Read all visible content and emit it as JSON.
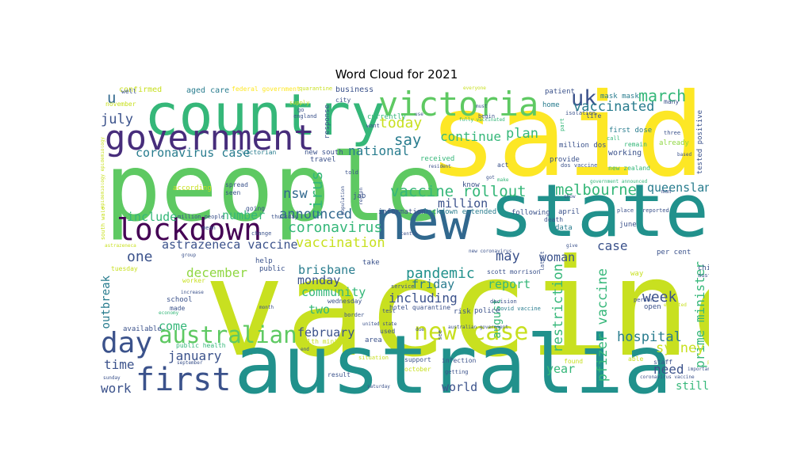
{
  "figure": {
    "title": "Word Cloud for 2021"
  },
  "palette": {
    "purple": "#472d7b",
    "deep_purple": "#440154",
    "indigo": "#3b528b",
    "blue": "#31688e",
    "teal_blue": "#287c8e",
    "teal": "#21918c",
    "sea": "#1f9e89",
    "green": "#35b779",
    "mint": "#5ec962",
    "lime": "#90d743",
    "yellow_green": "#c8e020",
    "yellow": "#fde725"
  },
  "words": [
    {
      "text": "vaccine",
      "color": "#c8e020"
    },
    {
      "text": "said",
      "color": "#fde725"
    },
    {
      "text": "people",
      "color": "#5ec962"
    },
    {
      "text": "australia",
      "color": "#21918c"
    },
    {
      "text": "state",
      "color": "#21918c"
    },
    {
      "text": "new",
      "color": "#31688e"
    },
    {
      "text": "country",
      "color": "#35b779"
    },
    {
      "text": "victoria",
      "color": "#5ec962"
    },
    {
      "text": "government",
      "color": "#472d7b"
    },
    {
      "text": "lockdown",
      "color": "#440154"
    },
    {
      "text": "first",
      "color": "#3b528b"
    },
    {
      "text": "day",
      "color": "#3b528b"
    },
    {
      "text": "australian",
      "color": "#5ec962"
    },
    {
      "text": "new case",
      "color": "#c8e020"
    },
    {
      "text": "vaccine rollout",
      "color": "#35b779"
    },
    {
      "text": "melbourne",
      "color": "#35b779"
    },
    {
      "text": "uk",
      "color": "#3b528b"
    },
    {
      "text": "vaccinated",
      "color": "#287c8e"
    },
    {
      "text": "march",
      "color": "#35b779"
    },
    {
      "text": "today",
      "color": "#c8e020"
    },
    {
      "text": "say",
      "color": "#287c8e"
    },
    {
      "text": "plan",
      "color": "#35b779"
    },
    {
      "text": "continue",
      "color": "#35b779"
    },
    {
      "text": "national",
      "color": "#287c8e"
    },
    {
      "text": "july",
      "color": "#3b528b"
    },
    {
      "text": "u",
      "color": "#31688e"
    },
    {
      "text": "nsw",
      "color": "#31688e"
    },
    {
      "text": "coronavirus case",
      "color": "#287c8e"
    },
    {
      "text": "virus",
      "color": "#35b779"
    },
    {
      "text": "announced",
      "color": "#31688e"
    },
    {
      "text": "coronavirus",
      "color": "#35b779"
    },
    {
      "text": "vaccination",
      "color": "#c8e020"
    },
    {
      "text": "million",
      "color": "#3b528b"
    },
    {
      "text": "queensland",
      "color": "#287c8e"
    },
    {
      "text": "astrazeneca vaccine",
      "color": "#3b528b"
    },
    {
      "text": "include",
      "color": "#35b779"
    },
    {
      "text": "number",
      "color": "#35b779"
    },
    {
      "text": "one",
      "color": "#3b528b"
    },
    {
      "text": "may",
      "color": "#3b528b"
    },
    {
      "text": "woman",
      "color": "#3b528b"
    },
    {
      "text": "case",
      "color": "#3b528b"
    },
    {
      "text": "pandemic",
      "color": "#21918c"
    },
    {
      "text": "friday",
      "color": "#287c8e"
    },
    {
      "text": "brisbane",
      "color": "#287c8e"
    },
    {
      "text": "december",
      "color": "#90d743"
    },
    {
      "text": "monday",
      "color": "#3b528b"
    },
    {
      "text": "community",
      "color": "#35b779"
    },
    {
      "text": "including",
      "color": "#3b528b"
    },
    {
      "text": "report",
      "color": "#35b779"
    },
    {
      "text": "restriction",
      "color": "#35b779"
    },
    {
      "text": "pfizer vaccine",
      "color": "#35b779"
    },
    {
      "text": "prime minister",
      "color": "#35b779"
    },
    {
      "text": "week",
      "color": "#3b528b"
    },
    {
      "text": "hospital",
      "color": "#287c8e"
    },
    {
      "text": "sydney",
      "color": "#c8e020"
    },
    {
      "text": "two",
      "color": "#35b779"
    },
    {
      "text": "february",
      "color": "#3b528b"
    },
    {
      "text": "january",
      "color": "#3b528b"
    },
    {
      "text": "time",
      "color": "#3b528b"
    },
    {
      "text": "come",
      "color": "#35b779"
    },
    {
      "text": "work",
      "color": "#3b528b"
    },
    {
      "text": "outbreak",
      "color": "#287c8e"
    },
    {
      "text": "august",
      "color": "#35b779"
    },
    {
      "text": "year",
      "color": "#35b779"
    },
    {
      "text": "need",
      "color": "#3b528b"
    },
    {
      "text": "still",
      "color": "#35b779"
    },
    {
      "text": "world",
      "color": "#3b528b"
    },
    {
      "text": "confirmed",
      "color": "#c8e020"
    },
    {
      "text": "aged care",
      "color": "#287c8e"
    },
    {
      "text": "federal government",
      "color": "#fde725"
    },
    {
      "text": "quarantine",
      "color": "#c8e020"
    },
    {
      "text": "business",
      "color": "#3b528b"
    },
    {
      "text": "patient",
      "color": "#3b528b"
    },
    {
      "text": "home",
      "color": "#287c8e"
    },
    {
      "text": "many",
      "color": "#3b528b"
    },
    {
      "text": "mask mask",
      "color": "#287c8e"
    },
    {
      "text": "life",
      "color": "#3b528b"
    },
    {
      "text": "first dose",
      "color": "#287c8e"
    },
    {
      "text": "tested positive",
      "color": "#3b528b"
    },
    {
      "text": "already",
      "color": "#90d743"
    },
    {
      "text": "remain",
      "color": "#35b779"
    },
    {
      "text": "working",
      "color": "#3b528b"
    },
    {
      "text": "million dos",
      "color": "#3b528b"
    },
    {
      "text": "received",
      "color": "#35b779"
    },
    {
      "text": "provide",
      "color": "#3b528b"
    },
    {
      "text": "new zealand",
      "color": "#35b779"
    },
    {
      "text": "victorian",
      "color": "#287c8e"
    },
    {
      "text": "new south",
      "color": "#3b528b"
    },
    {
      "text": "travel",
      "color": "#3b528b"
    },
    {
      "text": "currently",
      "color": "#35b779"
    },
    {
      "text": "according",
      "color": "#c8e020"
    },
    {
      "text": "spread",
      "color": "#3b528b"
    },
    {
      "text": "seen",
      "color": "#3b528b"
    },
    {
      "text": "told",
      "color": "#3b528b"
    },
    {
      "text": "jab",
      "color": "#3b528b"
    },
    {
      "text": "know",
      "color": "#3b528b"
    },
    {
      "text": "going",
      "color": "#3b528b"
    },
    {
      "text": "million people",
      "color": "#3b528b"
    },
    {
      "text": "information",
      "color": "#3b528b"
    },
    {
      "text": "lockdown extended",
      "color": "#287c8e"
    },
    {
      "text": "following",
      "color": "#3b528b"
    },
    {
      "text": "april",
      "color": "#3b528b"
    },
    {
      "text": "data",
      "color": "#287c8e"
    },
    {
      "text": "death",
      "color": "#3b528b"
    },
    {
      "text": "june",
      "color": "#3b528b"
    },
    {
      "text": "per cent",
      "color": "#3b528b"
    },
    {
      "text": "thursday",
      "color": "#3b528b"
    },
    {
      "text": "help",
      "color": "#3b528b"
    },
    {
      "text": "public",
      "color": "#3b528b"
    },
    {
      "text": "take",
      "color": "#3b528b"
    },
    {
      "text": "scott morrison",
      "color": "#3b528b"
    },
    {
      "text": "tuesday",
      "color": "#c8e020"
    },
    {
      "text": "worker",
      "color": "#c8e020"
    },
    {
      "text": "school",
      "color": "#3b528b"
    },
    {
      "text": "made",
      "color": "#3b528b"
    },
    {
      "text": "economy",
      "color": "#35b779"
    },
    {
      "text": "hotel quarantine",
      "color": "#3b528b"
    },
    {
      "text": "wednesday",
      "color": "#3b528b"
    },
    {
      "text": "risk",
      "color": "#3b528b"
    },
    {
      "text": "decision",
      "color": "#3b528b"
    },
    {
      "text": "covid vaccine",
      "color": "#287c8e"
    },
    {
      "text": "police",
      "color": "#3b528b"
    },
    {
      "text": "child",
      "color": "#3b528b"
    },
    {
      "text": "way",
      "color": "#c8e020"
    },
    {
      "text": "australia vaccine",
      "color": "#3b528b"
    },
    {
      "text": "person",
      "color": "#3b528b"
    },
    {
      "text": "open",
      "color": "#3b528b"
    },
    {
      "text": "available",
      "color": "#3b528b"
    },
    {
      "text": "public health",
      "color": "#35b779"
    },
    {
      "text": "health minister",
      "color": "#c8e020"
    },
    {
      "text": "used",
      "color": "#3b528b"
    },
    {
      "text": "area",
      "color": "#3b528b"
    },
    {
      "text": "support",
      "color": "#3b528b"
    },
    {
      "text": "infection",
      "color": "#3b528b"
    },
    {
      "text": "australian government",
      "color": "#3b528b"
    },
    {
      "text": "result",
      "color": "#3b528b"
    },
    {
      "text": "situation",
      "color": "#c8e020"
    },
    {
      "text": "october",
      "color": "#c8e020"
    },
    {
      "text": "getting",
      "color": "#3b528b"
    },
    {
      "text": "found",
      "color": "#c8e020"
    },
    {
      "text": "able",
      "color": "#c8e020"
    },
    {
      "text": "staff",
      "color": "#3b528b"
    },
    {
      "text": "important",
      "color": "#3b528b"
    },
    {
      "text": "september",
      "color": "#3b528b"
    },
    {
      "text": "sunday",
      "color": "#3b528b"
    },
    {
      "text": "saturday",
      "color": "#3b528b"
    },
    {
      "text": "well",
      "color": "#3b528b"
    },
    {
      "text": "november",
      "color": "#c8e020"
    },
    {
      "text": "england",
      "color": "#3b528b"
    },
    {
      "text": "city",
      "color": "#3b528b"
    },
    {
      "text": "want",
      "color": "#3b528b"
    },
    {
      "text": "begin",
      "color": "#3b528b"
    },
    {
      "text": "fully vaccinated",
      "color": "#35b779"
    },
    {
      "text": "resident",
      "color": "#3b528b"
    },
    {
      "text": "act",
      "color": "#3b528b"
    },
    {
      "text": "dos vaccine",
      "color": "#3b528b"
    },
    {
      "text": "isolation",
      "color": "#3b528b"
    },
    {
      "text": "call",
      "color": "#35b779"
    },
    {
      "text": "three",
      "color": "#3b528b"
    },
    {
      "text": "part",
      "color": "#35b779"
    },
    {
      "text": "supply",
      "color": "#c8e020"
    },
    {
      "text": "go",
      "color": "#3b528b"
    },
    {
      "text": "response",
      "color": "#3b528b"
    },
    {
      "text": "population",
      "color": "#3b528b"
    },
    {
      "text": "region",
      "color": "#3b528b"
    },
    {
      "text": "make",
      "color": "#35b779"
    },
    {
      "text": "government announced",
      "color": "#35b779"
    },
    {
      "text": "man",
      "color": "#3b528b"
    },
    {
      "text": "reported",
      "color": "#3b528b"
    },
    {
      "text": "place",
      "color": "#3b528b"
    },
    {
      "text": "change",
      "color": "#3b528b"
    },
    {
      "text": "mean",
      "color": "#3b528b"
    },
    {
      "text": "group",
      "color": "#3b528b"
    },
    {
      "text": "centre",
      "color": "#3b528b"
    },
    {
      "text": "service",
      "color": "#3b528b"
    },
    {
      "text": "test",
      "color": "#3b528b"
    },
    {
      "text": "united state",
      "color": "#3b528b"
    },
    {
      "text": "border",
      "color": "#3b528b"
    },
    {
      "text": "expected",
      "color": "#c8e020"
    },
    {
      "text": "possible",
      "color": "#c8e020"
    },
    {
      "text": "coronavirus vaccine",
      "color": "#3b528b"
    },
    {
      "text": "everyone",
      "color": "#c8e020"
    },
    {
      "text": "south wale",
      "color": "#c8e020"
    },
    {
      "text": "astrazeneca",
      "color": "#c8e020"
    },
    {
      "text": "increase",
      "color": "#3b528b"
    },
    {
      "text": "month",
      "color": "#3b528b"
    },
    {
      "text": "end",
      "color": "#3b528b"
    },
    {
      "text": "based",
      "color": "#3b528b"
    },
    {
      "text": "due",
      "color": "#3b528b"
    },
    {
      "text": "use",
      "color": "#3b528b"
    },
    {
      "text": "new coronavirus",
      "color": "#3b528b"
    },
    {
      "text": "latest",
      "color": "#3b528b"
    },
    {
      "text": "give",
      "color": "#3b528b"
    },
    {
      "text": "see",
      "color": "#3b528b"
    },
    {
      "text": "show",
      "color": "#3b528b"
    },
    {
      "text": "got",
      "color": "#3b528b"
    },
    {
      "text": "must",
      "color": "#3b528b"
    },
    {
      "text": "epidemiology epidemiology",
      "color": "#c8e020"
    }
  ]
}
